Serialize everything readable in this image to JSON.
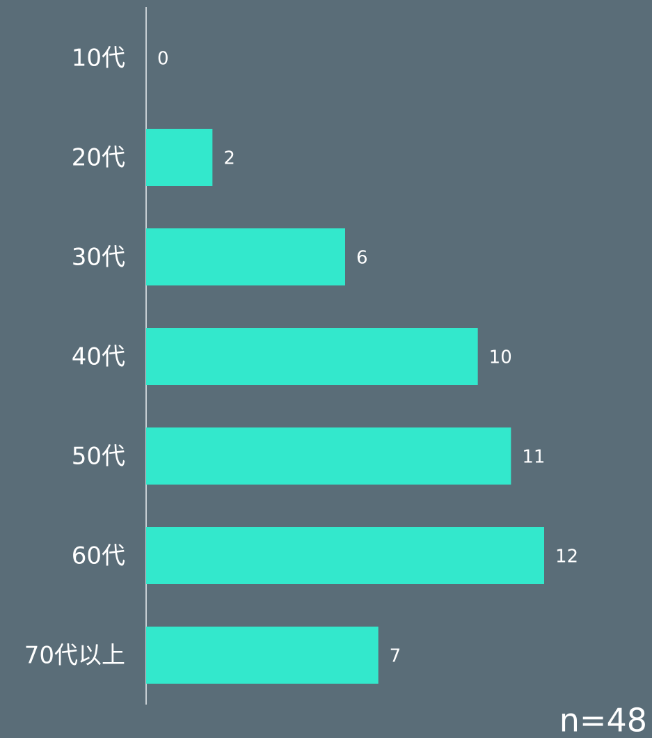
{
  "chart_data": {
    "type": "bar",
    "orientation": "horizontal",
    "categories": [
      "10代",
      "20代",
      "30代",
      "40代",
      "50代",
      "60代",
      "70代以上"
    ],
    "values": [
      0,
      2,
      6,
      10,
      11,
      12,
      7
    ],
    "color": "#33e8cc",
    "annotation": "n=48"
  }
}
